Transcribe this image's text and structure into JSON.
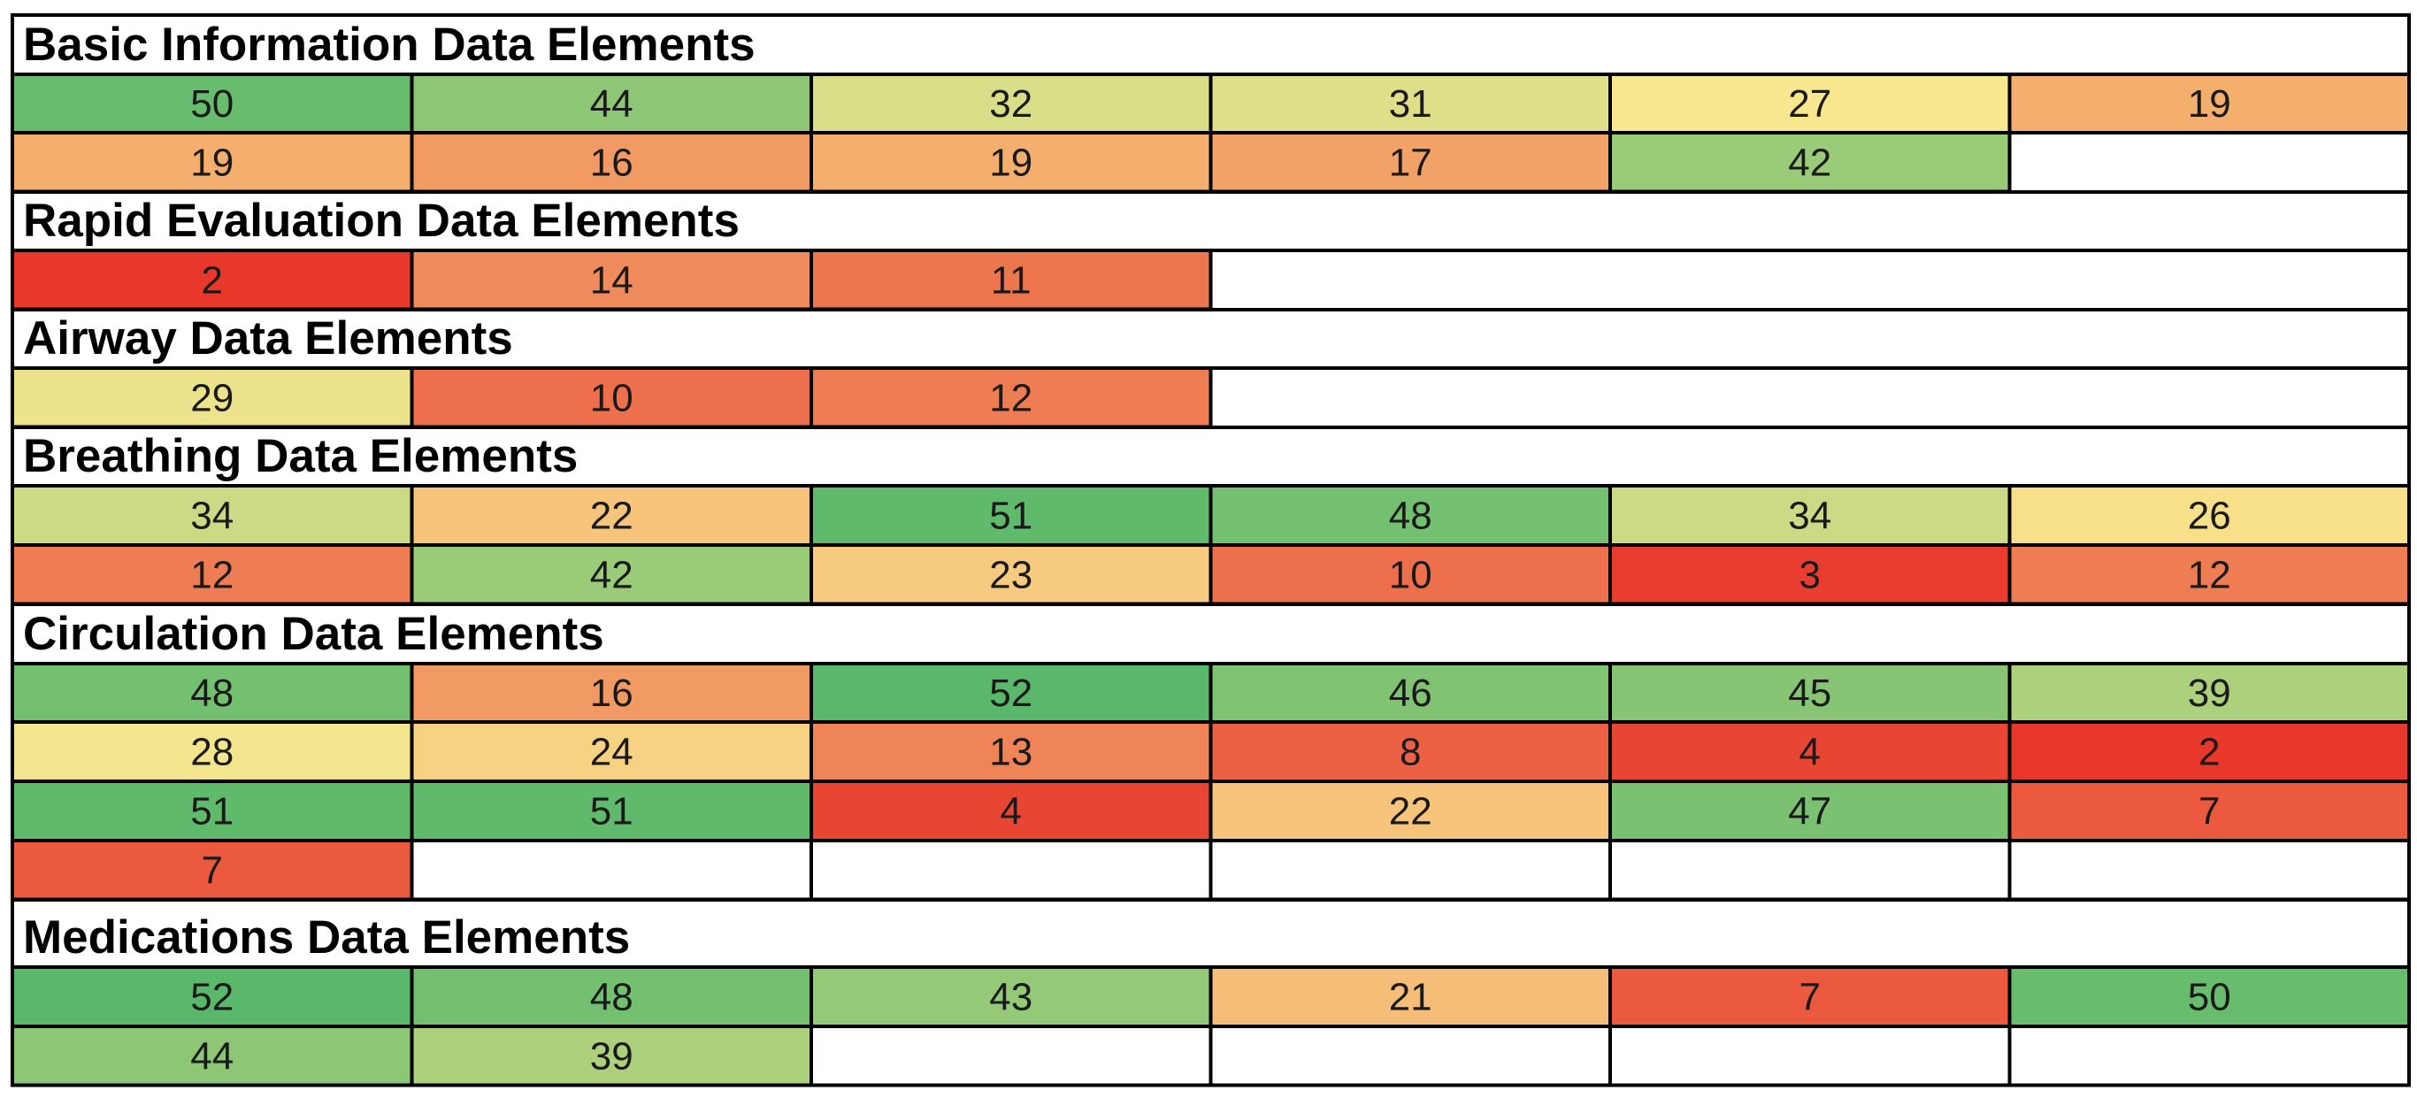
{
  "chart_data": {
    "type": "heatmap",
    "color_scale": {
      "low": "#e8372b",
      "mid": "#f9e78f",
      "high": "#5ab86a"
    },
    "sections": [
      {
        "title": "Basic Information Data Elements",
        "rows": [
          [
            50,
            44,
            32,
            31,
            27,
            19
          ],
          [
            19,
            16,
            19,
            17,
            42
          ]
        ]
      },
      {
        "title": "Rapid Evaluation Data Elements",
        "rows": [
          [
            2,
            14,
            11
          ]
        ]
      },
      {
        "title": "Airway Data Elements",
        "rows": [
          [
            29,
            10,
            12
          ]
        ]
      },
      {
        "title": "Breathing Data Elements",
        "rows": [
          [
            34,
            22,
            51,
            48,
            34,
            26
          ],
          [
            12,
            42,
            23,
            10,
            3,
            12
          ]
        ]
      },
      {
        "title": "Circulation Data Elements",
        "rows": [
          [
            48,
            16,
            52,
            46,
            45,
            39
          ],
          [
            28,
            24,
            13,
            8,
            4,
            2
          ],
          [
            51,
            51,
            4,
            22,
            47,
            7
          ],
          [
            7,
            null,
            null,
            null,
            null,
            null
          ]
        ]
      },
      {
        "title": "Medications Data Elements",
        "rows": [
          [
            52,
            48,
            43,
            21,
            7,
            50
          ],
          [
            44,
            39,
            null,
            null,
            null,
            null
          ]
        ]
      }
    ]
  }
}
